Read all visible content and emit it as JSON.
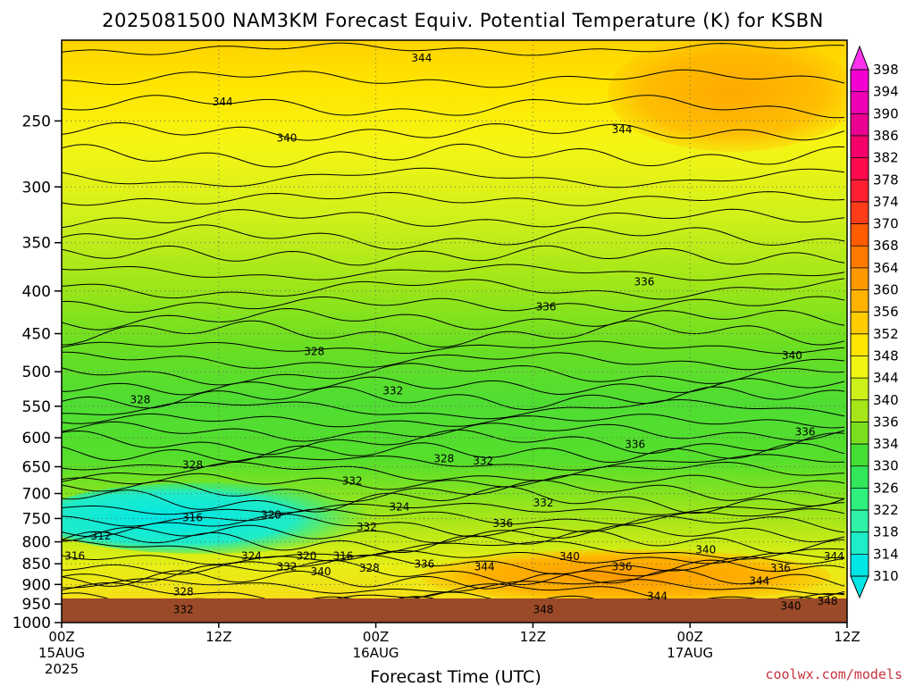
{
  "chart_data": {
    "type": "heatmap",
    "title": "2025081500 NAM3KM Forecast Equiv. Potential Temperature (K) for KSBN",
    "xlabel": "Forecast Time (UTC)",
    "ylabel": "",
    "credit": "coolwx.com/models",
    "y_axis": {
      "scale": "log-pressure",
      "range": [
        200,
        1000
      ],
      "ticks": [
        250,
        300,
        350,
        400,
        450,
        500,
        550,
        600,
        650,
        700,
        750,
        800,
        850,
        900,
        950,
        1000
      ]
    },
    "x_axis": {
      "range_hours": [
        0,
        60
      ],
      "ticks": [
        {
          "hour": 0,
          "label": "00Z",
          "date": "15AUG",
          "year": "2025"
        },
        {
          "hour": 12,
          "label": "12Z",
          "date": "",
          "year": ""
        },
        {
          "hour": 24,
          "label": "00Z",
          "date": "16AUG",
          "year": ""
        },
        {
          "hour": 36,
          "label": "12Z",
          "date": "",
          "year": ""
        },
        {
          "hour": 48,
          "label": "00Z",
          "date": "17AUG",
          "year": ""
        },
        {
          "hour": 60,
          "label": "12Z",
          "date": "",
          "year": ""
        }
      ]
    },
    "grid": true,
    "colorbar": {
      "levels": [
        310,
        314,
        318,
        322,
        326,
        330,
        334,
        336,
        340,
        344,
        348,
        352,
        356,
        360,
        364,
        368,
        370,
        374,
        378,
        382,
        386,
        390,
        394,
        398
      ],
      "colors": [
        "#00e6e6",
        "#1fecc8",
        "#2ef2a6",
        "#2ef07d",
        "#33e65a",
        "#45df33",
        "#7adf1f",
        "#a6e619",
        "#ccf01a",
        "#f0f514",
        "#ffe600",
        "#ffcc00",
        "#ffb300",
        "#ff9900",
        "#ff7a00",
        "#ff5c00",
        "#ff3d1a",
        "#ff1f33",
        "#ff0a4d",
        "#f5006b",
        "#eb0091",
        "#f000b4",
        "#f500d2",
        "#ff33ee"
      ]
    },
    "contour_labels": [
      {
        "hour": 27.5,
        "p": 210,
        "value": "344"
      },
      {
        "hour": 12.3,
        "p": 237,
        "value": "344"
      },
      {
        "hour": 17.2,
        "p": 262,
        "value": "340"
      },
      {
        "hour": 42.8,
        "p": 256,
        "value": "344"
      },
      {
        "hour": 44.5,
        "p": 390,
        "value": "336"
      },
      {
        "hour": 37.0,
        "p": 418,
        "value": "336"
      },
      {
        "hour": 19.3,
        "p": 473,
        "value": "328"
      },
      {
        "hour": 55.8,
        "p": 478,
        "value": "340"
      },
      {
        "hour": 25.3,
        "p": 527,
        "value": "332"
      },
      {
        "hour": 6.0,
        "p": 540,
        "value": "328"
      },
      {
        "hour": 56.8,
        "p": 590,
        "value": "336"
      },
      {
        "hour": 43.8,
        "p": 611,
        "value": "336"
      },
      {
        "hour": 29.2,
        "p": 636,
        "value": "328"
      },
      {
        "hour": 32.2,
        "p": 640,
        "value": "332"
      },
      {
        "hour": 10.0,
        "p": 647,
        "value": "328"
      },
      {
        "hour": 22.2,
        "p": 676,
        "value": "332"
      },
      {
        "hour": 36.8,
        "p": 718,
        "value": "332"
      },
      {
        "hour": 25.8,
        "p": 726,
        "value": "324"
      },
      {
        "hour": 16.0,
        "p": 743,
        "value": "320"
      },
      {
        "hour": 10.0,
        "p": 748,
        "value": "316"
      },
      {
        "hour": 33.7,
        "p": 760,
        "value": "336"
      },
      {
        "hour": 23.3,
        "p": 768,
        "value": "332"
      },
      {
        "hour": 3.0,
        "p": 787,
        "value": "312"
      },
      {
        "hour": 1.0,
        "p": 832,
        "value": "316"
      },
      {
        "hour": 14.5,
        "p": 832,
        "value": "324"
      },
      {
        "hour": 18.7,
        "p": 832,
        "value": "320"
      },
      {
        "hour": 21.5,
        "p": 832,
        "value": "316"
      },
      {
        "hour": 38.8,
        "p": 833,
        "value": "340"
      },
      {
        "hour": 49.2,
        "p": 818,
        "value": "340"
      },
      {
        "hour": 59.0,
        "p": 833,
        "value": "344"
      },
      {
        "hour": 17.2,
        "p": 857,
        "value": "332"
      },
      {
        "hour": 19.8,
        "p": 869,
        "value": "340"
      },
      {
        "hour": 23.5,
        "p": 860,
        "value": "328"
      },
      {
        "hour": 27.7,
        "p": 851,
        "value": "336"
      },
      {
        "hour": 32.3,
        "p": 857,
        "value": "344"
      },
      {
        "hour": 42.8,
        "p": 857,
        "value": "336"
      },
      {
        "hour": 54.9,
        "p": 860,
        "value": "336"
      },
      {
        "hour": 53.3,
        "p": 892,
        "value": "344"
      },
      {
        "hour": 9.3,
        "p": 918,
        "value": "328"
      },
      {
        "hour": 45.5,
        "p": 930,
        "value": "344"
      },
      {
        "hour": 58.5,
        "p": 942,
        "value": "348"
      },
      {
        "hour": 55.7,
        "p": 955,
        "value": "340"
      },
      {
        "hour": 9.3,
        "p": 965,
        "value": "332"
      },
      {
        "hour": 36.8,
        "p": 965,
        "value": "348"
      }
    ]
  }
}
